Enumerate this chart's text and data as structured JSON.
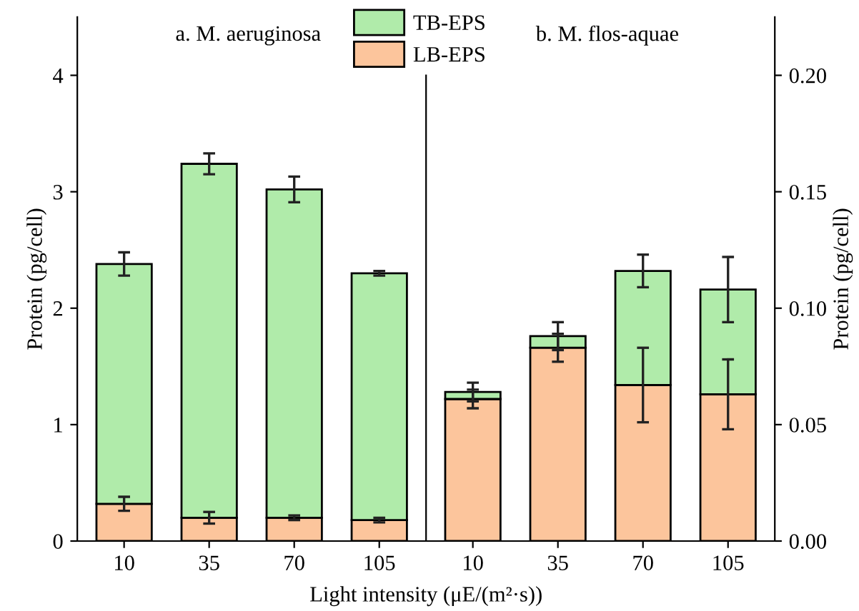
{
  "chart_data": [
    {
      "type": "bar",
      "title": "a. M. aeruginosa",
      "xlabel": "Light intensity (μE/(m²·s))",
      "ylabel": "Protein (pg/cell)",
      "categories": [
        "10",
        "35",
        "70",
        "105"
      ],
      "stacked": true,
      "ylim": [
        0,
        4.5
      ],
      "yticks": [
        0,
        1,
        2,
        3,
        4
      ],
      "legend": "top right",
      "grid": false,
      "series": [
        {
          "name": "LB-EPS",
          "color": "#fcc59c",
          "values": [
            0.32,
            0.2,
            0.2,
            0.18
          ],
          "errors": [
            0.06,
            0.05,
            0.02,
            0.02
          ]
        },
        {
          "name": "TB-EPS",
          "color": "#b0ebaa",
          "values": [
            2.06,
            3.04,
            2.82,
            2.12
          ],
          "errors": [
            0.1,
            0.09,
            0.11,
            0.02
          ]
        }
      ]
    },
    {
      "type": "bar",
      "title": "b. M. flos-aquae",
      "y2label": "Protein (pg/cell)",
      "categories": [
        "10",
        "35",
        "70",
        "105"
      ],
      "stacked": true,
      "y2lim": [
        0,
        0.225
      ],
      "y2ticks": [
        {
          "value": 0,
          "label": "0.00"
        },
        0.05,
        {
          "value": 0.1,
          "label": "0.10"
        },
        0.15,
        {
          "value": 0.2,
          "label": "0.20"
        }
      ],
      "grid": false,
      "series": [
        {
          "color": "#fcc59c",
          "axis": "y2",
          "values": [
            0.061,
            0.083,
            0.067,
            0.063
          ],
          "errors": [
            0.004,
            0.006,
            0.016,
            0.015
          ]
        },
        {
          "color": "#b0ebaa",
          "axis": "y2",
          "values": [
            0.003,
            0.005,
            0.049,
            0.045
          ],
          "errors": [
            0.004,
            0.006,
            0.007,
            0.014
          ]
        }
      ]
    }
  ]
}
